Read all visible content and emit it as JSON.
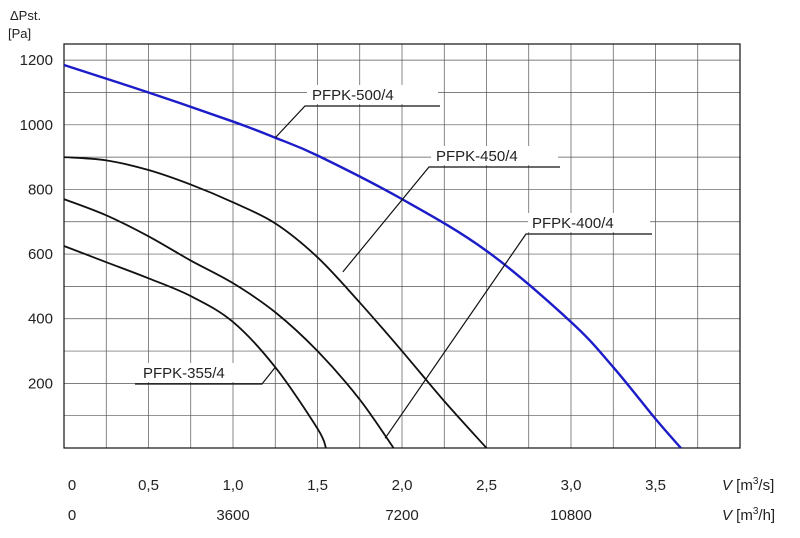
{
  "chart_data": {
    "type": "line",
    "title": "",
    "ylabel": "ΔPst.",
    "yunit": "[Pa]",
    "xlabel": "V [m³/s]",
    "xlabel2": "V [m³/h]",
    "xlim": [
      0,
      4.0
    ],
    "ylim": [
      0,
      1250
    ],
    "grid": true,
    "yticks": [
      {
        "value": 200,
        "label": "200"
      },
      {
        "value": 400,
        "label": "400"
      },
      {
        "value": 600,
        "label": "600"
      },
      {
        "value": 800,
        "label": "800"
      },
      {
        "value": 1000,
        "label": "1000"
      },
      {
        "value": 1200,
        "label": "1200"
      }
    ],
    "xticks": [
      {
        "value": 0,
        "label": "0"
      },
      {
        "value": 0.5,
        "label": "0,5"
      },
      {
        "value": 1.0,
        "label": "1,0"
      },
      {
        "value": 1.5,
        "label": "1,5"
      },
      {
        "value": 2.0,
        "label": "2,0"
      },
      {
        "value": 2.5,
        "label": "2,5"
      },
      {
        "value": 3.0,
        "label": "3,0"
      },
      {
        "value": 3.5,
        "label": "3,5"
      }
    ],
    "xticks2": [
      {
        "value": 0,
        "label": "0"
      },
      {
        "value": 1.0,
        "label": "3600"
      },
      {
        "value": 2.0,
        "label": "7200"
      },
      {
        "value": 3.0,
        "label": "10800"
      }
    ],
    "series": [
      {
        "name": "PFPK-500/4",
        "color": "#1c1cc8",
        "x": [
          0,
          0.5,
          1.0,
          1.25,
          1.5,
          2.0,
          2.5,
          3.0,
          3.25,
          3.5,
          3.65
        ],
        "y": [
          1185,
          1100,
          1010,
          960,
          905,
          770,
          610,
          390,
          250,
          90,
          0
        ]
      },
      {
        "name": "PFPK-450/4",
        "color": "#111111",
        "x": [
          0,
          0.25,
          0.5,
          0.75,
          1.0,
          1.25,
          1.5,
          1.75,
          2.0,
          2.25,
          2.5
        ],
        "y": [
          900,
          890,
          860,
          815,
          760,
          695,
          590,
          450,
          300,
          145,
          0
        ]
      },
      {
        "name": "PFPK-400/4",
        "color": "#111111",
        "x": [
          0,
          0.25,
          0.5,
          0.75,
          1.0,
          1.25,
          1.5,
          1.75,
          1.95
        ],
        "y": [
          770,
          720,
          655,
          580,
          510,
          420,
          300,
          150,
          0
        ]
      },
      {
        "name": "PFPK-355/4",
        "color": "#111111",
        "x": [
          0,
          0.25,
          0.5,
          0.75,
          1.0,
          1.25,
          1.5,
          1.55
        ],
        "y": [
          625,
          575,
          525,
          470,
          390,
          250,
          60,
          0
        ]
      }
    ],
    "annotations": [
      {
        "series": "PFPK-500/4",
        "text": "PFPK-500/4",
        "anchor_x": 1.25,
        "anchor_y": 960
      },
      {
        "series": "PFPK-450/4",
        "text": "PFPK-450/4",
        "anchor_x": 1.65,
        "anchor_y": 545
      },
      {
        "series": "PFPK-400/4",
        "text": "PFPK-400/4",
        "anchor_x": 1.9,
        "anchor_y": 30
      },
      {
        "series": "PFPK-355/4",
        "text": "PFPK-355/4",
        "anchor_x": 1.25,
        "anchor_y": 250
      }
    ]
  }
}
